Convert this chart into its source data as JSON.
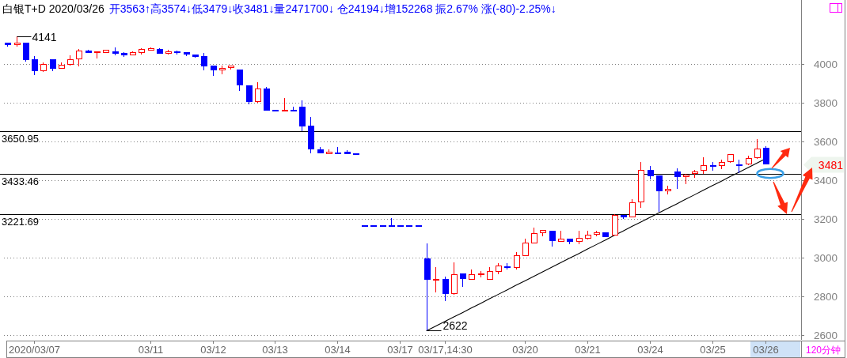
{
  "chart_data": {
    "type": "candlestick",
    "title": "白银T+D 2020/03/26",
    "subtitle": "开3563↑高3574↓低3479↓收3481↓量2471700↓ 仓24194↓增152268 振2.67% 涨(-80)-2.25%↓",
    "categories": [
      null,
      null,
      null,
      "2020/03/07",
      null,
      null,
      null,
      null,
      null,
      null,
      null,
      null,
      null,
      null,
      null,
      null,
      "03/11",
      null,
      null,
      null,
      null,
      null,
      null,
      "03/12",
      null,
      null,
      null,
      null,
      null,
      null,
      "03/13",
      null,
      null,
      null,
      null,
      null,
      null,
      "03/14",
      null,
      null,
      null,
      null,
      null,
      null,
      "03/17",
      null,
      null,
      null,
      null,
      "03/17,14:30",
      null,
      null,
      null,
      null,
      null,
      null,
      null,
      null,
      "03/20",
      null,
      null,
      null,
      null,
      null,
      null,
      "03/21",
      null,
      null,
      null,
      null,
      null,
      null,
      "03/24",
      null,
      null,
      null,
      null,
      null,
      null,
      "03/25",
      null,
      null,
      null,
      null,
      null,
      "03/26"
    ],
    "ohlc": [
      [
        4105,
        4106,
        4087,
        4100
      ],
      [
        4100,
        4141,
        4090,
        4106
      ],
      [
        4106,
        4106,
        4012,
        4020
      ],
      [
        4019,
        4041,
        3943,
        3963
      ],
      [
        3965,
        4006,
        3959,
        3995
      ],
      [
        4019,
        4023,
        3962,
        3976
      ],
      [
        3976,
        4006,
        3973,
        3993
      ],
      [
        3996,
        4044,
        3992,
        4022
      ],
      [
        4026,
        4075,
        3987,
        4064
      ],
      [
        4066,
        4073,
        4056,
        4057
      ],
      [
        4060,
        4062,
        4028,
        4062
      ],
      [
        4059,
        4071,
        4055,
        4068
      ],
      [
        4060,
        4084,
        4044,
        4053
      ],
      [
        4053,
        4060,
        4037,
        4045
      ],
      [
        4047,
        4064,
        4042,
        4056
      ],
      [
        4059,
        4082,
        4049,
        4076
      ],
      [
        4072,
        4086,
        4069,
        4078
      ],
      [
        4076,
        4080,
        4053,
        4053
      ],
      [
        4055,
        4071,
        4049,
        4063
      ],
      [
        4061,
        4067,
        4047,
        4059
      ],
      [
        4056,
        4060,
        4041,
        4048
      ],
      [
        4047,
        4049,
        4033,
        4037
      ],
      [
        4036,
        4057,
        3967,
        3987
      ],
      [
        3987,
        3987,
        3938,
        3967
      ],
      [
        3967,
        3989,
        3947,
        3977
      ],
      [
        3980,
        3992,
        3972,
        3988
      ],
      [
        3970,
        3970,
        3861,
        3889
      ],
      [
        3886,
        3889,
        3792,
        3803
      ],
      [
        3803,
        3906,
        3799,
        3872
      ],
      [
        3872,
        3881,
        3759,
        3759
      ],
      [
        3758,
        3758,
        3758,
        3758
      ],
      [
        3761,
        3822,
        3761,
        3762
      ],
      [
        3762,
        3777,
        3761,
        3761
      ],
      [
        3775,
        3811,
        3652,
        3679
      ],
      [
        3677,
        3726,
        3537,
        3560
      ],
      [
        3558,
        3571,
        3537,
        3540
      ],
      [
        3537,
        3557,
        3536,
        3542
      ],
      [
        3540,
        3572,
        3539,
        3539
      ],
      [
        3542,
        3553,
        3535,
        3535
      ],
      [
        3534,
        3534,
        3534,
        3534
      ],
      [
        3163,
        3163,
        3163,
        3163
      ],
      [
        3163,
        3163,
        3163,
        3163
      ],
      [
        3163,
        3163,
        3163,
        3163
      ],
      [
        3163,
        3204,
        3163,
        3163
      ],
      [
        3163,
        3163,
        3163,
        3163
      ],
      [
        3163,
        3163,
        3163,
        3163
      ],
      [
        3163,
        3163,
        3163,
        3163
      ],
      [
        2992,
        3074,
        2622,
        2888
      ],
      [
        2887,
        2952,
        2820,
        2889
      ],
      [
        2888,
        2902,
        2773,
        2813
      ],
      [
        2813,
        2975,
        2809,
        2913
      ],
      [
        2914,
        2917,
        2850,
        2891
      ],
      [
        2888,
        2939,
        2884,
        2913
      ],
      [
        2914,
        2928,
        2899,
        2916
      ],
      [
        2888,
        2950,
        2883,
        2926
      ],
      [
        2929,
        2971,
        2915,
        2958
      ],
      [
        2951,
        2970,
        2939,
        2950
      ],
      [
        2948,
        3028,
        2939,
        3008
      ],
      [
        3011,
        3098,
        3011,
        3073
      ],
      [
        3076,
        3155,
        3076,
        3125
      ],
      [
        3129,
        3141,
        3111,
        3141
      ],
      [
        3134,
        3134,
        3057,
        3087
      ],
      [
        3084,
        3138,
        3084,
        3094
      ],
      [
        3094,
        3096,
        3068,
        3084
      ],
      [
        3084,
        3138,
        3068,
        3098
      ],
      [
        3100,
        3138,
        3095,
        3117
      ],
      [
        3121,
        3137,
        3109,
        3126
      ],
      [
        3126,
        3126,
        3109,
        3109
      ],
      [
        3114,
        3224,
        3114,
        3217
      ],
      [
        3217,
        3217,
        3198,
        3209
      ],
      [
        3210,
        3301,
        3206,
        3282
      ],
      [
        3288,
        3494,
        3258,
        3451
      ],
      [
        3452,
        3474,
        3405,
        3421
      ],
      [
        3420,
        3425,
        3237,
        3343
      ],
      [
        3345,
        3370,
        3327,
        3353
      ],
      [
        3443,
        3461,
        3356,
        3419
      ],
      [
        3419,
        3432,
        3380,
        3425
      ],
      [
        3432,
        3452,
        3410,
        3443
      ],
      [
        3448,
        3518,
        3432,
        3476
      ],
      [
        3476,
        3493,
        3448,
        3475
      ],
      [
        3476,
        3503,
        3458,
        3492
      ],
      [
        3494,
        3533,
        3489,
        3533
      ],
      [
        3480,
        3505,
        3435,
        3479
      ],
      [
        3484,
        3526,
        3476,
        3512
      ],
      [
        3516,
        3611,
        3511,
        3561
      ],
      [
        3563,
        3574,
        3479,
        3481
      ]
    ],
    "colors": [
      "#0000ff",
      "#ff0000",
      "#0000ff",
      "#0000ff",
      "#ff0000",
      "#0000ff",
      "#ff0000",
      "#ff0000",
      "#ff0000",
      "#0000ff",
      "#ff0000",
      "#ff0000",
      "#0000ff",
      "#0000ff",
      "#ff0000",
      "#ff0000",
      "#ff0000",
      "#0000ff",
      "#ff0000",
      "#0000ff",
      "#0000ff",
      "#0000ff",
      "#0000ff",
      "#0000ff",
      "#ff0000",
      "#ff0000",
      "#0000ff",
      "#0000ff",
      "#ff0000",
      "#0000ff",
      "#0000ff",
      "#ff0000",
      "#0000ff",
      "#0000ff",
      "#0000ff",
      "#0000ff",
      "#ff0000",
      "#0000ff",
      "#0000ff",
      "#0000ff",
      "#0000ff",
      "#0000ff",
      "#0000ff",
      "#0000ff",
      "#0000ff",
      "#0000ff",
      "#0000ff",
      "#0000ff",
      "#ff0000",
      "#0000ff",
      "#ff0000",
      "#0000ff",
      "#ff0000",
      "#ff0000",
      "#ff0000",
      "#ff0000",
      "#0000ff",
      "#ff0000",
      "#ff0000",
      "#ff0000",
      "#ff0000",
      "#0000ff",
      "#ff0000",
      "#0000ff",
      "#ff0000",
      "#ff0000",
      "#ff0000",
      "#0000ff",
      "#ff0000",
      "#0000ff",
      "#ff0000",
      "#ff0000",
      "#0000ff",
      "#0000ff",
      "#ff0000",
      "#0000ff",
      "#ff0000",
      "#ff0000",
      "#ff0000",
      "#0000ff",
      "#ff0000",
      "#ff0000",
      "#0000ff",
      "#ff0000",
      "#ff0000",
      "#0000ff"
    ],
    "series": [
      {
        "type": "line",
        "color": "#000000",
        "values": [
          null,
          null,
          null,
          null,
          null,
          null,
          null,
          null,
          null,
          null,
          null,
          null,
          null,
          null,
          null,
          null,
          null,
          null,
          null,
          null,
          null,
          null,
          null,
          null,
          null,
          null,
          null,
          null,
          null,
          null,
          null,
          null,
          null,
          null,
          null,
          null,
          null,
          null,
          null,
          null,
          null,
          null,
          null,
          null,
          null,
          null,
          null,
          2622,
          2645,
          2669,
          2692,
          2715,
          2739,
          2762,
          2786,
          2809,
          2832,
          2856,
          2879,
          2902,
          2926,
          2949,
          2973,
          2996,
          3019,
          3043,
          3066,
          3089,
          3113,
          3136,
          3160,
          3183,
          3206,
          3230,
          3253,
          3276,
          3300,
          3323,
          3347,
          3370,
          3393,
          3417,
          3440,
          3463,
          3487,
          3510
        ]
      }
    ],
    "ylim": [
      2575,
      4329
    ],
    "yticks": [
      2600,
      2800,
      3000,
      3200,
      3400,
      3600,
      3800,
      4000
    ],
    "grid": "y",
    "ref_lines": [
      {
        "axis": "y",
        "value": 3650.95,
        "label": "3650.95",
        "color": "#000000"
      },
      {
        "axis": "y",
        "value": 3433.46,
        "label": "3433.46",
        "color": "#000000"
      },
      {
        "axis": "y",
        "value": 3221.69,
        "label": "3221.69",
        "color": "#000000"
      }
    ],
    "annotations": [
      "4141",
      "2622",
      "3481",
      "120分钟"
    ]
  }
}
